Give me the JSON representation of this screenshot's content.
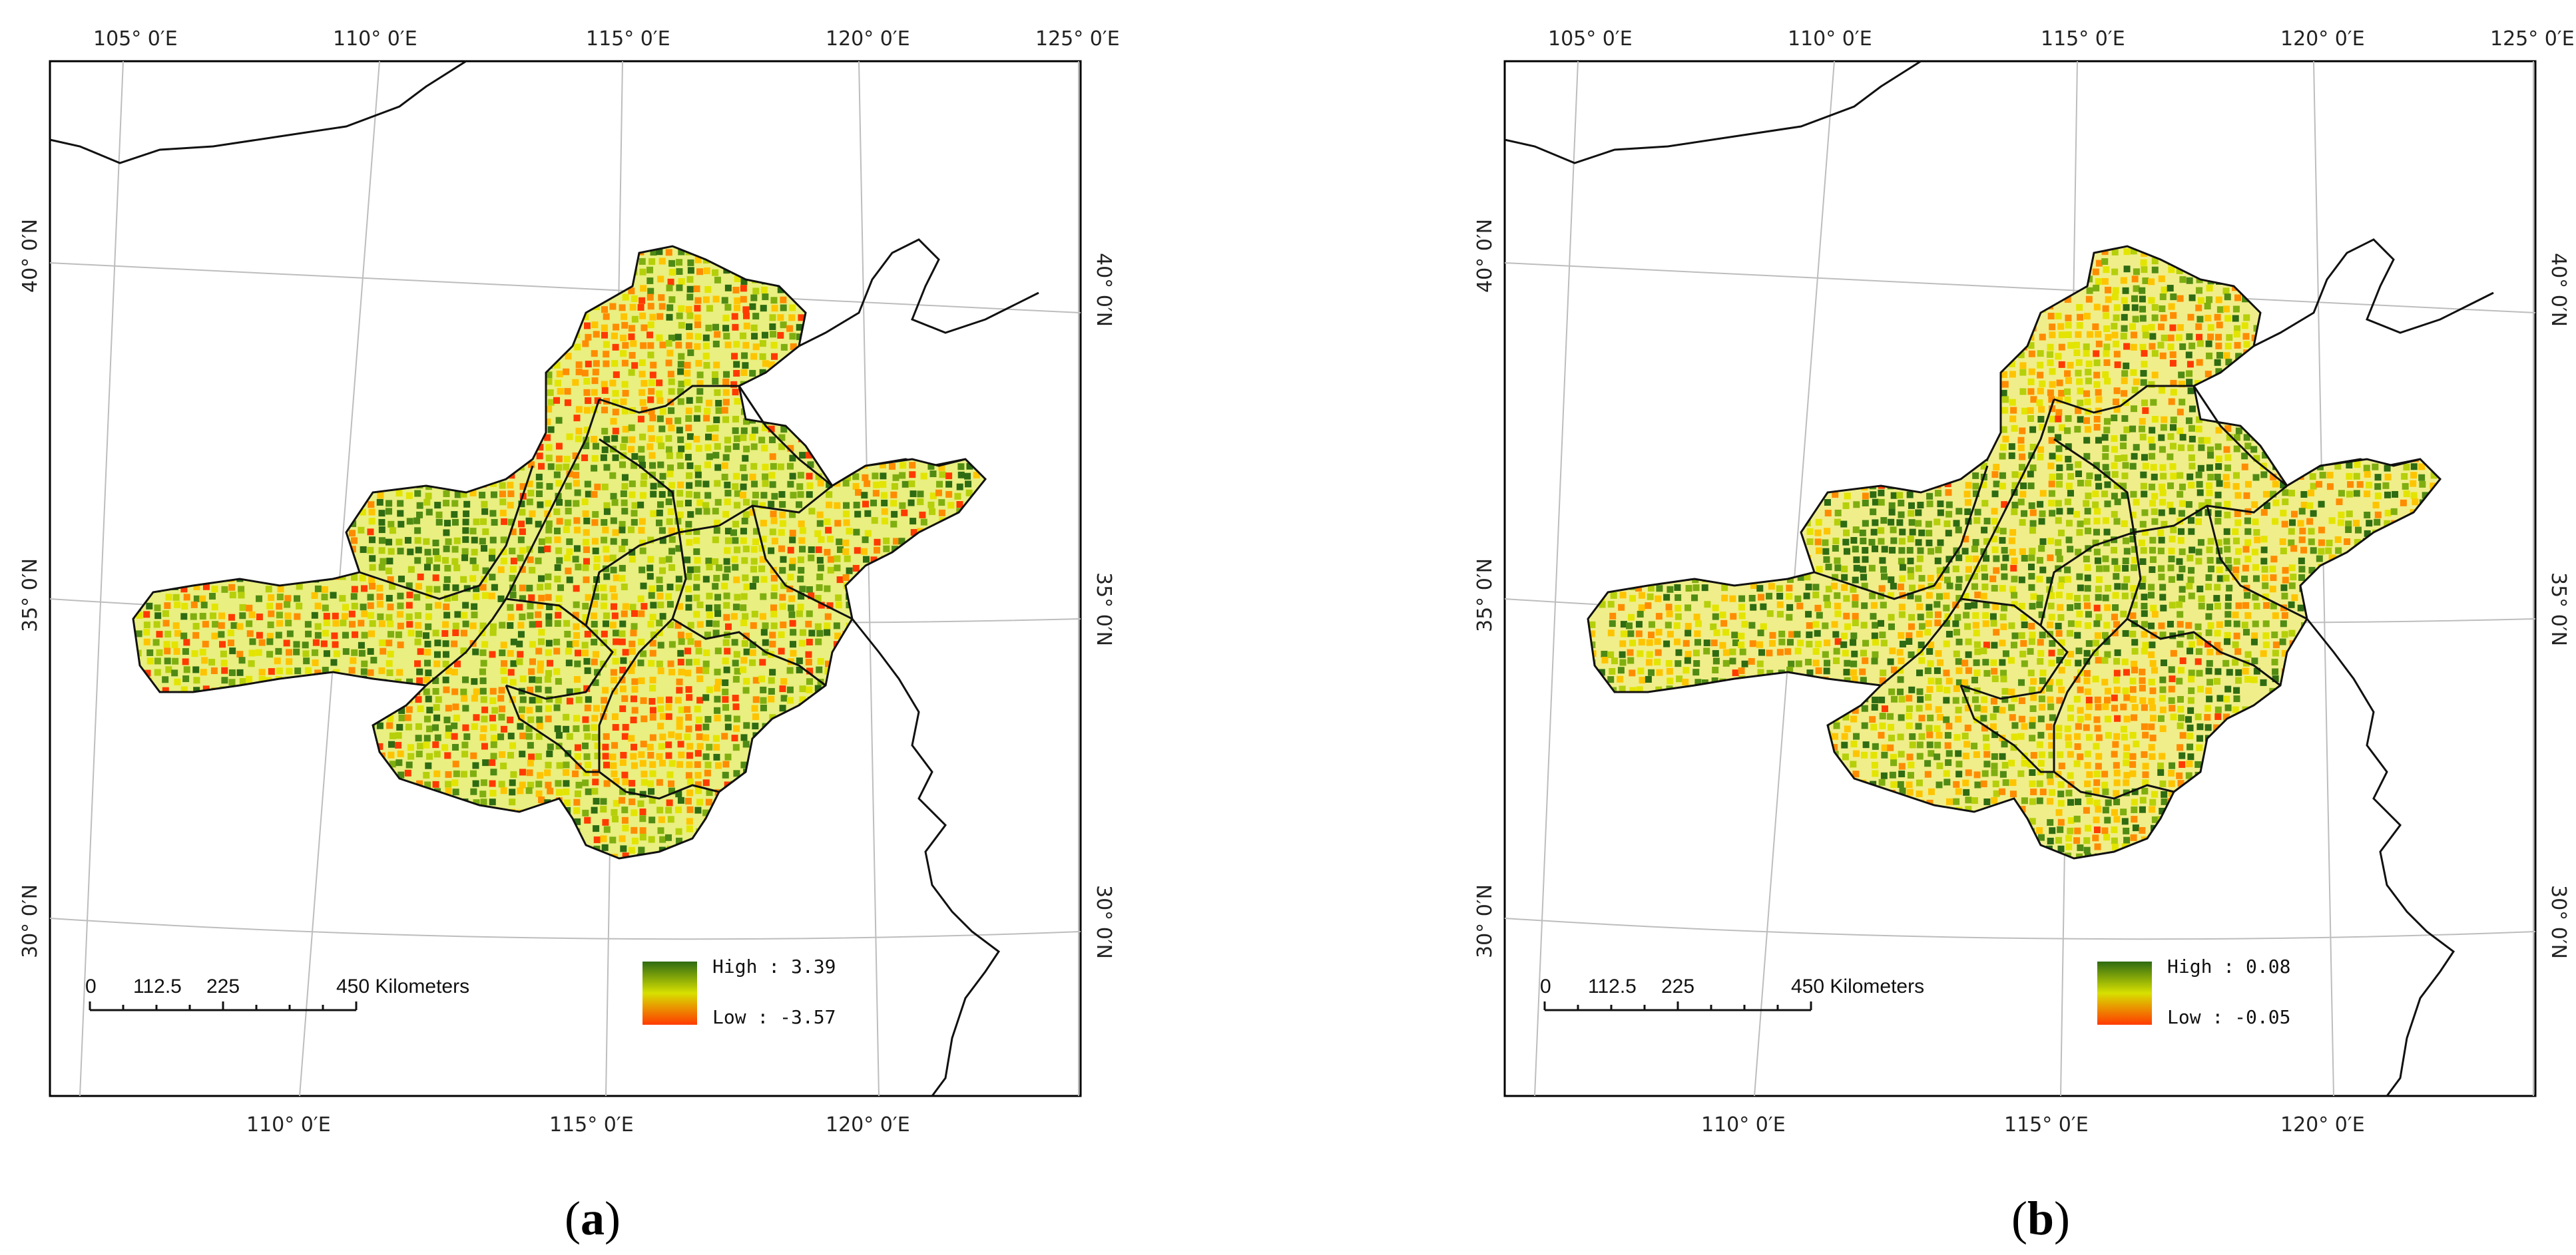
{
  "panels": [
    {
      "caption_letter": "a",
      "legend": {
        "high": "High : 3.39",
        "low": "Low : -3.57"
      },
      "scale": {
        "ticks": [
          "0",
          "112.5",
          "225",
          "450 Kilometers"
        ]
      },
      "intensity": 0.62
    },
    {
      "caption_letter": "b",
      "legend": {
        "high": "High : 0.08",
        "low": "Low : -0.05"
      },
      "scale": {
        "ticks": [
          "0",
          "112.5",
          "225",
          "450 Kilometers"
        ]
      },
      "intensity": 0.48
    }
  ],
  "graticule": {
    "top_labels": [
      "105° 0′E",
      "110° 0′E",
      "115° 0′E",
      "120° 0′E",
      "125° 0′E"
    ],
    "bottom_labels": [
      "110° 0′E",
      "115° 0′E",
      "120° 0′E"
    ],
    "left_labels": [
      "40° 0′N",
      "35° 0′N",
      "30° 0′N"
    ],
    "right_labels": [
      "40° 0′N",
      "35° 0′N",
      "30° 0′N"
    ]
  },
  "colors": {
    "high": "#2e6b12",
    "mid": "#c8d400",
    "low": "#ff3a00",
    "frame": "#000000",
    "grid": "#bdbdbd"
  }
}
